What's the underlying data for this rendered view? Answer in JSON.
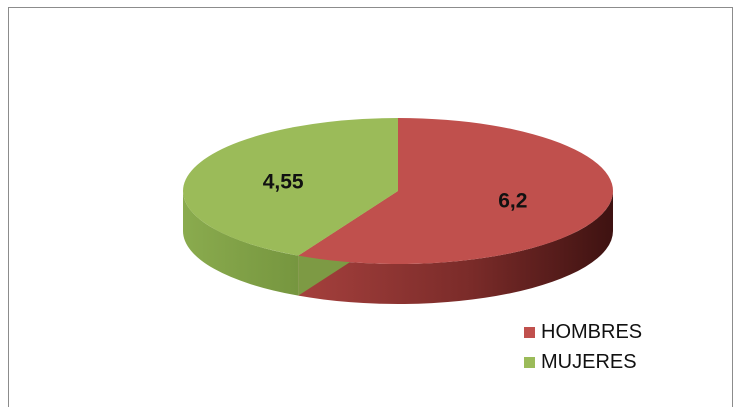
{
  "chart_data": {
    "type": "pie",
    "style": "3d",
    "categories": [
      "HOMBRES",
      "MUJERES"
    ],
    "values": [
      6.2,
      4.55
    ],
    "data_labels": [
      "6,2",
      "4,55"
    ],
    "colors": [
      "#c0504d",
      "#9bbb59"
    ],
    "legend_position": "bottom-right",
    "title": ""
  }
}
